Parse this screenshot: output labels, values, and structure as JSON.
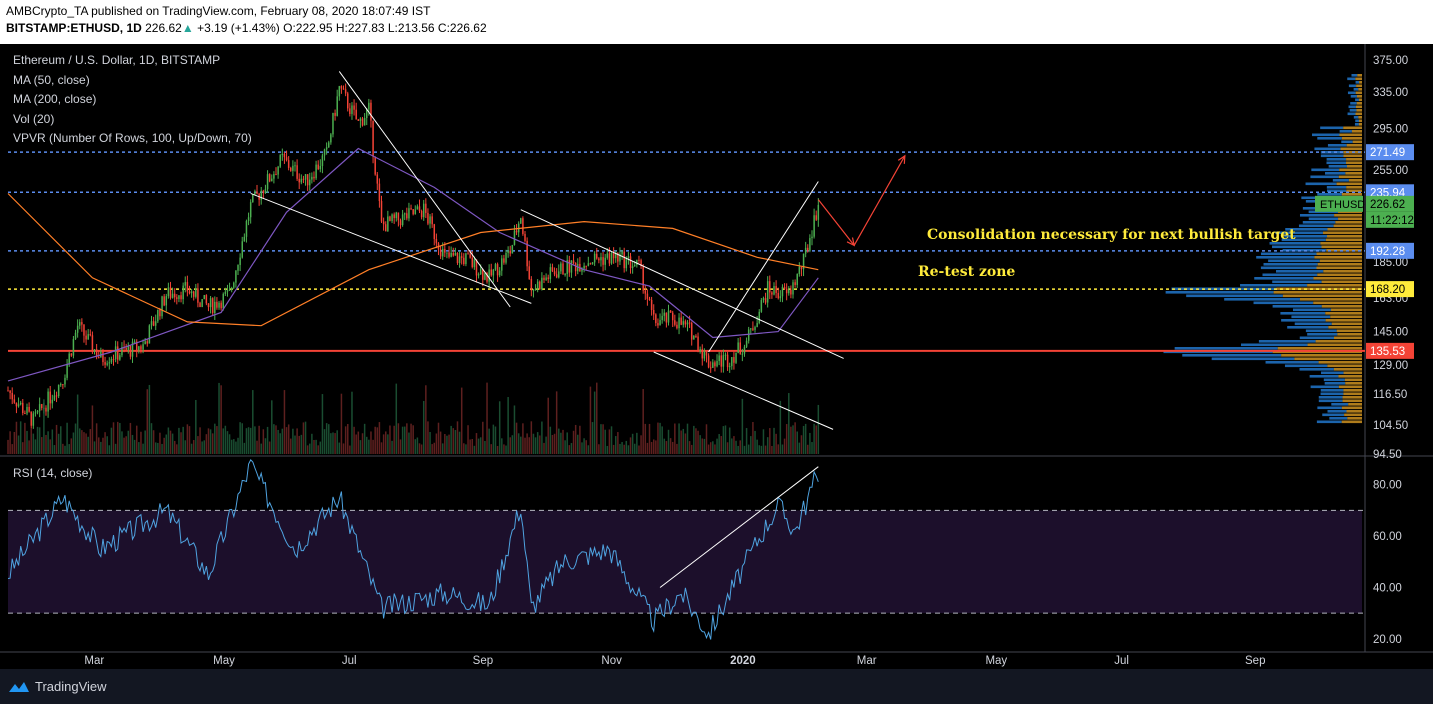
{
  "header": {
    "line1": "AMBCrypto_TA published on TradingView.com, February 08, 2020 18:07:49 IST",
    "symbol": "BITSTAMP:ETHUSD, 1D",
    "last": "226.62",
    "change": "+3.19 (+1.43%)",
    "ohlc": "O:222.95 H:227.83 L:213.56 C:226.62"
  },
  "legend": {
    "title": "Ethereum / U.S. Dollar, 1D, BITSTAMP",
    "ma50": "MA (50, close)",
    "ma200": "MA (200, close)",
    "vol": "Vol (20)",
    "vpvr": "VPVR (Number Of Rows, 100, Up/Down, 70)",
    "rsi": "RSI (14, close)"
  },
  "annotations": {
    "consolidation": "Consolidation necessary for next bullish target",
    "retest": "Re-test zone"
  },
  "price_axis": {
    "ticks": [
      "375.00",
      "335.00",
      "295.00",
      "255.00",
      "185.00",
      "145.00",
      "129.00",
      "116.50",
      "104.50",
      "94.50"
    ],
    "overlap_tick": "163.00"
  },
  "rsi_axis": {
    "ticks": [
      "80.00",
      "60.00",
      "40.00",
      "20.00"
    ]
  },
  "level_tags": [
    {
      "label": "271.49",
      "color": "#5b8def",
      "text_color": "#ffffff"
    },
    {
      "label": "235.94",
      "color": "#5b8def",
      "text_color": "#ffffff"
    },
    {
      "label": "226.62",
      "color": "#4caf50",
      "text_color": "#000000"
    },
    {
      "label": "11:22:12",
      "color": "#4caf50",
      "text_color": "#000000"
    },
    {
      "label": "192.28",
      "color": "#5b8def",
      "text_color": "#ffffff"
    },
    {
      "label": "168.20",
      "color": "#ffeb3b",
      "text_color": "#000000"
    },
    {
      "label": "135.53",
      "color": "#f44336",
      "text_color": "#ffffff"
    }
  ],
  "symbol_tag": "ETHUSD",
  "time_axis": [
    "Mar",
    "May",
    "Jul",
    "Sep",
    "Nov",
    "2020",
    "Mar",
    "May",
    "Jul",
    "Sep"
  ],
  "footer": {
    "brand": "TradingView"
  },
  "colors": {
    "up": "#4caf50",
    "down": "#f44336",
    "ma50": "#7e57c2",
    "ma200": "#ff7f27",
    "dotted_blue": "#5b8def",
    "dotted_yellow": "#ffeb3b",
    "support_red": "#f44336",
    "rsi_line": "#4fa3e0",
    "rsi_band": "#1c0f2b"
  },
  "chart_data": {
    "type": "candlestick",
    "symbol": "BITSTAMP:ETHUSD",
    "interval": "1D",
    "x_range": [
      "2019-01-20",
      "2020-02-08"
    ],
    "ylim": [
      94.5,
      380
    ],
    "y_scale": "log",
    "horizontal_levels": [
      {
        "value": 271.49,
        "style": "dotted",
        "color": "#5b8def"
      },
      {
        "value": 235.94,
        "style": "dotted",
        "color": "#5b8def"
      },
      {
        "value": 192.28,
        "style": "dotted",
        "color": "#5b8def"
      },
      {
        "value": 168.2,
        "style": "dotted",
        "color": "#ffeb3b"
      },
      {
        "value": 135.53,
        "style": "solid",
        "color": "#f44336"
      }
    ],
    "close_path": [
      {
        "x": "2019-01-20",
        "y": 118
      },
      {
        "x": "2019-02-01",
        "y": 106
      },
      {
        "x": "2019-02-15",
        "y": 123
      },
      {
        "x": "2019-02-22",
        "y": 148
      },
      {
        "x": "2019-03-05",
        "y": 132
      },
      {
        "x": "2019-03-25",
        "y": 138
      },
      {
        "x": "2019-04-05",
        "y": 165
      },
      {
        "x": "2019-04-15",
        "y": 168
      },
      {
        "x": "2019-04-25",
        "y": 158
      },
      {
        "x": "2019-05-05",
        "y": 165
      },
      {
        "x": "2019-05-15",
        "y": 225
      },
      {
        "x": "2019-05-30",
        "y": 265
      },
      {
        "x": "2019-06-10",
        "y": 245
      },
      {
        "x": "2019-06-20",
        "y": 270
      },
      {
        "x": "2019-06-26",
        "y": 340
      },
      {
        "x": "2019-07-05",
        "y": 300
      },
      {
        "x": "2019-07-10",
        "y": 315
      },
      {
        "x": "2019-07-16",
        "y": 210
      },
      {
        "x": "2019-07-25",
        "y": 215
      },
      {
        "x": "2019-08-05",
        "y": 222
      },
      {
        "x": "2019-08-15",
        "y": 188
      },
      {
        "x": "2019-08-25",
        "y": 187
      },
      {
        "x": "2019-09-05",
        "y": 175
      },
      {
        "x": "2019-09-15",
        "y": 192
      },
      {
        "x": "2019-09-20",
        "y": 218
      },
      {
        "x": "2019-09-25",
        "y": 168
      },
      {
        "x": "2019-10-05",
        "y": 178
      },
      {
        "x": "2019-10-15",
        "y": 183
      },
      {
        "x": "2019-10-25",
        "y": 187
      },
      {
        "x": "2019-11-05",
        "y": 188
      },
      {
        "x": "2019-11-15",
        "y": 182
      },
      {
        "x": "2019-11-22",
        "y": 150
      },
      {
        "x": "2019-12-01",
        "y": 152
      },
      {
        "x": "2019-12-10",
        "y": 145
      },
      {
        "x": "2019-12-18",
        "y": 130
      },
      {
        "x": "2019-12-28",
        "y": 132
      },
      {
        "x": "2020-01-05",
        "y": 140
      },
      {
        "x": "2020-01-15",
        "y": 168
      },
      {
        "x": "2020-01-25",
        "y": 165
      },
      {
        "x": "2020-02-01",
        "y": 185
      },
      {
        "x": "2020-02-08",
        "y": 226.62
      }
    ],
    "ma50_path": [
      {
        "x": "2019-01-20",
        "y": 122
      },
      {
        "x": "2019-03-10",
        "y": 135
      },
      {
        "x": "2019-05-01",
        "y": 155
      },
      {
        "x": "2019-06-01",
        "y": 220
      },
      {
        "x": "2019-07-05",
        "y": 275
      },
      {
        "x": "2019-08-10",
        "y": 240
      },
      {
        "x": "2019-09-10",
        "y": 205
      },
      {
        "x": "2019-10-20",
        "y": 180
      },
      {
        "x": "2019-11-20",
        "y": 170
      },
      {
        "x": "2019-12-20",
        "y": 142
      },
      {
        "x": "2020-01-20",
        "y": 145
      },
      {
        "x": "2020-02-08",
        "y": 175
      }
    ],
    "ma200_path": [
      {
        "x": "2019-01-20",
        "y": 235
      },
      {
        "x": "2019-03-01",
        "y": 175
      },
      {
        "x": "2019-04-15",
        "y": 150
      },
      {
        "x": "2019-05-20",
        "y": 148
      },
      {
        "x": "2019-07-10",
        "y": 180
      },
      {
        "x": "2019-09-01",
        "y": 205
      },
      {
        "x": "2019-10-20",
        "y": 213
      },
      {
        "x": "2019-12-01",
        "y": 208
      },
      {
        "x": "2020-01-10",
        "y": 188
      },
      {
        "x": "2020-02-08",
        "y": 180
      }
    ],
    "rsi": {
      "ylim": [
        18,
        90
      ],
      "overbought": 70,
      "oversold": 30,
      "path": [
        {
          "x": "2019-01-20",
          "y": 45
        },
        {
          "x": "2019-02-15",
          "y": 75
        },
        {
          "x": "2019-03-05",
          "y": 55
        },
        {
          "x": "2019-04-05",
          "y": 70
        },
        {
          "x": "2019-04-25",
          "y": 45
        },
        {
          "x": "2019-05-15",
          "y": 88
        },
        {
          "x": "2019-06-05",
          "y": 55
        },
        {
          "x": "2019-06-26",
          "y": 75
        },
        {
          "x": "2019-07-16",
          "y": 32
        },
        {
          "x": "2019-08-15",
          "y": 38
        },
        {
          "x": "2019-09-05",
          "y": 33
        },
        {
          "x": "2019-09-20",
          "y": 72
        },
        {
          "x": "2019-09-25",
          "y": 32
        },
        {
          "x": "2019-10-10",
          "y": 50
        },
        {
          "x": "2019-11-01",
          "y": 55
        },
        {
          "x": "2019-11-22",
          "y": 27
        },
        {
          "x": "2019-12-05",
          "y": 38
        },
        {
          "x": "2019-12-18",
          "y": 22
        },
        {
          "x": "2020-01-10",
          "y": 58
        },
        {
          "x": "2020-01-20",
          "y": 72
        },
        {
          "x": "2020-01-28",
          "y": 62
        },
        {
          "x": "2020-02-08",
          "y": 85
        }
      ],
      "trendline": [
        {
          "x": "2019-11-25",
          "y": 40
        },
        {
          "x": "2020-02-08",
          "y": 87
        }
      ]
    },
    "trendlines": [
      {
        "from": {
          "x": "2019-06-26",
          "y": 360
        },
        "to": {
          "x": "2019-09-15",
          "y": 158
        }
      },
      {
        "from": {
          "x": "2019-05-15",
          "y": 235
        },
        "to": {
          "x": "2019-09-25",
          "y": 160
        }
      },
      {
        "from": {
          "x": "2019-09-20",
          "y": 222
        },
        "to": {
          "x": "2020-02-20",
          "y": 132
        }
      },
      {
        "from": {
          "x": "2019-11-22",
          "y": 135
        },
        "to": {
          "x": "2020-02-15",
          "y": 103
        }
      },
      {
        "from": {
          "x": "2019-12-18",
          "y": 135
        },
        "to": {
          "x": "2020-02-08",
          "y": 245
        }
      }
    ],
    "arrows": [
      {
        "from": {
          "x": "2020-02-08",
          "y": 230
        },
        "to": {
          "x": "2020-02-25",
          "y": 196
        }
      },
      {
        "from": {
          "x": "2020-02-25",
          "y": 196
        },
        "to": {
          "x": "2020-03-20",
          "y": 268
        }
      }
    ]
  }
}
